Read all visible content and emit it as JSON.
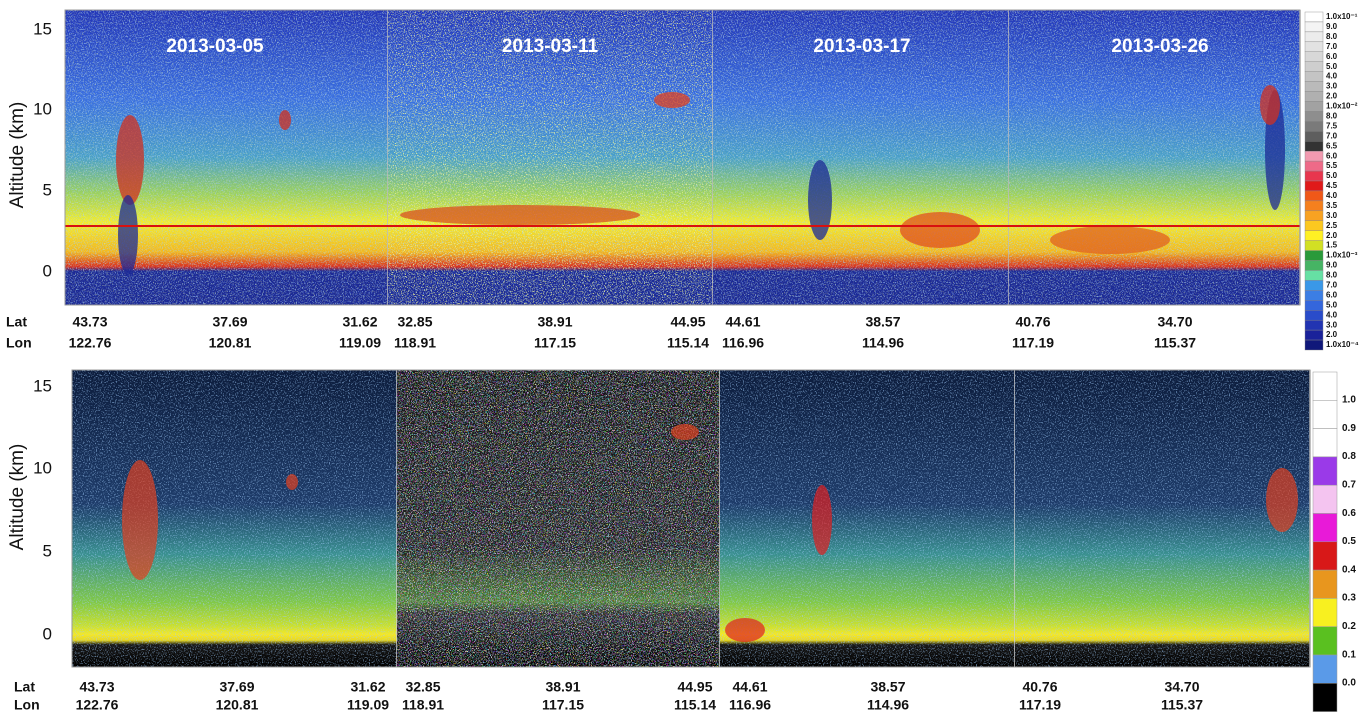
{
  "top_panel": {
    "y_label": "Altitude (km)",
    "y_ticks": [
      "15",
      "10",
      "5",
      "0"
    ],
    "dates": [
      "2013-03-05",
      "2013-03-11",
      "2013-03-17",
      "2013-03-26"
    ],
    "lat_label": "Lat",
    "lon_label": "Lon",
    "segments": [
      {
        "lat": [
          "43.73",
          "37.69",
          "31.62"
        ],
        "lon": [
          "122.76",
          "120.81",
          "119.09"
        ]
      },
      {
        "lat": [
          "32.85",
          "38.91",
          "44.95"
        ],
        "lon": [
          "118.91",
          "117.15",
          "115.14"
        ]
      },
      {
        "lat": [
          "44.61",
          "38.57"
        ],
        "lon": [
          "116.96",
          "114.96"
        ]
      },
      {
        "lat": [
          "40.76",
          "34.70"
        ],
        "lon": [
          "117.19",
          "115.37"
        ]
      }
    ],
    "colorbar": [
      "1.0x10⁻¹",
      "9.0",
      "8.0",
      "7.0",
      "6.0",
      "5.0",
      "4.0",
      "3.0",
      "2.0",
      "1.0x10⁻²",
      "8.0",
      "7.5",
      "7.0",
      "6.5",
      "6.0",
      "5.5",
      "5.0",
      "4.5",
      "4.0",
      "3.5",
      "3.0",
      "2.5",
      "2.0",
      "1.5",
      "1.0x10⁻³",
      "9.0",
      "8.0",
      "7.0",
      "6.0",
      "5.0",
      "4.0",
      "3.0",
      "2.0",
      "1.0x10⁻⁴"
    ]
  },
  "bottom_panel": {
    "y_label": "Altitude (km)",
    "y_ticks": [
      "15",
      "10",
      "5",
      "0"
    ],
    "lat_label": "Lat",
    "lon_label": "Lon",
    "segments": [
      {
        "lat": [
          "43.73",
          "37.69",
          "31.62"
        ],
        "lon": [
          "122.76",
          "120.81",
          "119.09"
        ]
      },
      {
        "lat": [
          "32.85",
          "38.91",
          "44.95"
        ],
        "lon": [
          "118.91",
          "117.15",
          "115.14"
        ]
      },
      {
        "lat": [
          "44.61",
          "38.57"
        ],
        "lon": [
          "116.96",
          "114.96"
        ]
      },
      {
        "lat": [
          "40.76",
          "34.70"
        ],
        "lon": [
          "117.19",
          "115.37"
        ]
      }
    ],
    "colorbar": [
      "1.0",
      "0.9",
      "0.8",
      "0.7",
      "0.6",
      "0.5",
      "0.4",
      "0.3",
      "0.2",
      "0.1",
      "0.0"
    ]
  }
}
